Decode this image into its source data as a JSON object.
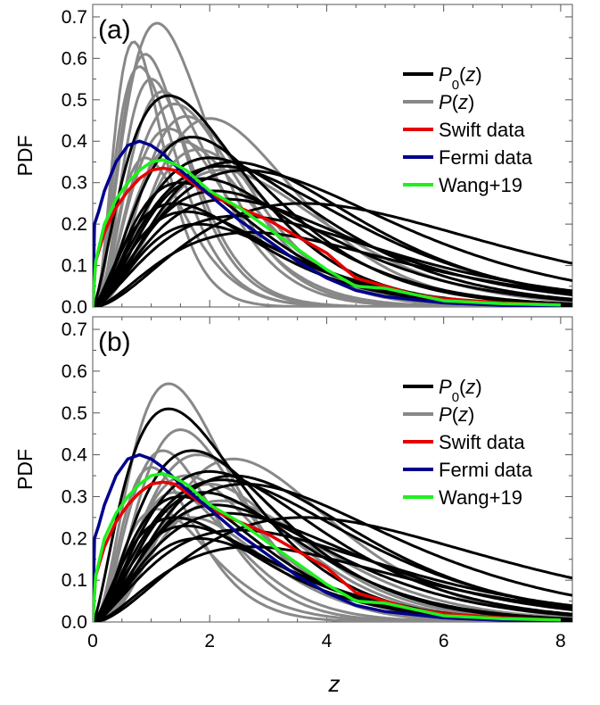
{
  "figure": {
    "xlabel": "z",
    "ylabel": "PDF"
  },
  "colors": {
    "P0": "#000000",
    "P": "#888888",
    "swift": "#e60000",
    "fermi": "#00008c",
    "wang": "#1ef01e"
  },
  "chart_data": [
    {
      "type": "line",
      "panel_label": "(a)",
      "xlabel": "",
      "ylabel": "PDF",
      "xlim": [
        0,
        8.2
      ],
      "ylim": [
        0,
        0.73
      ],
      "x_ticks": [
        "0",
        "2",
        "4",
        "6",
        "8"
      ],
      "y_ticks": [
        "0.0",
        "0.1",
        "0.2",
        "0.3",
        "0.4",
        "0.5",
        "0.6",
        "0.7"
      ],
      "legend": [
        "P0(z)",
        "P(z)",
        "Swift  data",
        "Fermi data",
        "Wang+19"
      ],
      "legend_position": "top-right",
      "families": [
        {
          "name": "P0(z)",
          "peaks": [
            [
              1.3,
              0.51
            ],
            [
              1.7,
              0.41
            ],
            [
              2.0,
              0.36
            ],
            [
              2.2,
              0.34
            ],
            [
              2.4,
              0.35
            ],
            [
              1.5,
              0.3
            ],
            [
              2.6,
              0.33
            ],
            [
              1.9,
              0.31
            ],
            [
              2.1,
              0.28
            ],
            [
              2.3,
              0.26
            ],
            [
              1.4,
              0.25
            ],
            [
              3.6,
              0.25
            ],
            [
              1.6,
              0.23
            ],
            [
              2.5,
              0.22
            ],
            [
              1.8,
              0.2
            ],
            [
              2.7,
              0.18
            ]
          ]
        },
        {
          "name": "P(z)",
          "peaks": [
            [
              1.1,
              0.685
            ],
            [
              0.7,
              0.64
            ],
            [
              0.9,
              0.61
            ],
            [
              0.8,
              0.58
            ],
            [
              1.0,
              0.55
            ],
            [
              1.2,
              0.52
            ],
            [
              1.4,
              0.49
            ],
            [
              1.6,
              0.46
            ],
            [
              2.0,
              0.455
            ],
            [
              1.3,
              0.43
            ],
            [
              1.5,
              0.4
            ],
            [
              1.8,
              0.38
            ],
            [
              0.9,
              0.36
            ],
            [
              2.2,
              0.33
            ]
          ]
        }
      ],
      "series": [
        {
          "name": "Swift  data",
          "x": [
            0,
            0.05,
            0.2,
            0.4,
            0.6,
            0.8,
            1.0,
            1.2,
            1.4,
            1.6,
            1.8,
            2.0,
            2.5,
            3.0,
            3.5,
            4.0,
            4.5,
            5.0,
            5.5,
            6.0,
            7.0,
            8.0
          ],
          "y": [
            0.0,
            0.11,
            0.18,
            0.24,
            0.28,
            0.31,
            0.33,
            0.335,
            0.33,
            0.31,
            0.29,
            0.27,
            0.24,
            0.21,
            0.17,
            0.13,
            0.07,
            0.05,
            0.03,
            0.02,
            0.01,
            0.005
          ]
        },
        {
          "name": "Fermi data",
          "x": [
            0,
            0.03,
            0.1,
            0.2,
            0.4,
            0.6,
            0.8,
            1.0,
            1.2,
            1.5,
            2.0,
            2.5,
            3.0,
            3.5,
            4.0,
            4.5,
            5.0,
            6.0,
            7.0,
            8.0
          ],
          "y": [
            0.0,
            0.2,
            0.23,
            0.28,
            0.35,
            0.39,
            0.4,
            0.39,
            0.37,
            0.33,
            0.27,
            0.21,
            0.16,
            0.11,
            0.07,
            0.04,
            0.025,
            0.01,
            0.004,
            0.002
          ]
        },
        {
          "name": "Wang+19",
          "x": [
            0,
            0.05,
            0.2,
            0.4,
            0.6,
            0.8,
            1.0,
            1.2,
            1.4,
            1.6,
            2.0,
            2.5,
            3.0,
            3.5,
            4.0,
            4.5,
            5.0,
            5.5,
            6.0,
            7.0,
            8.0
          ],
          "y": [
            0.0,
            0.11,
            0.2,
            0.26,
            0.3,
            0.33,
            0.35,
            0.355,
            0.345,
            0.33,
            0.28,
            0.24,
            0.19,
            0.14,
            0.09,
            0.05,
            0.045,
            0.03,
            0.015,
            0.008,
            0.005
          ]
        }
      ]
    },
    {
      "type": "line",
      "panel_label": "(b)",
      "xlabel": "z",
      "ylabel": "PDF",
      "xlim": [
        0,
        8.2
      ],
      "ylim": [
        0,
        0.73
      ],
      "x_ticks": [
        "0",
        "2",
        "4",
        "6",
        "8"
      ],
      "y_ticks": [
        "0.0",
        "0.1",
        "0.2",
        "0.3",
        "0.4",
        "0.5",
        "0.6",
        "0.7"
      ],
      "legend": [
        "P0(z)",
        "P(z)",
        "Swift  data",
        "Fermi data",
        "Wang+19"
      ],
      "legend_position": "top-right",
      "families": [
        {
          "name": "P0(z)",
          "peaks": [
            [
              1.3,
              0.51
            ],
            [
              1.7,
              0.41
            ],
            [
              2.0,
              0.36
            ],
            [
              2.2,
              0.34
            ],
            [
              2.4,
              0.35
            ],
            [
              1.5,
              0.3
            ],
            [
              2.6,
              0.33
            ],
            [
              1.9,
              0.31
            ],
            [
              2.1,
              0.28
            ],
            [
              2.3,
              0.26
            ],
            [
              1.4,
              0.25
            ],
            [
              3.6,
              0.25
            ],
            [
              1.6,
              0.23
            ],
            [
              2.5,
              0.22
            ],
            [
              1.8,
              0.2
            ],
            [
              2.7,
              0.18
            ]
          ]
        },
        {
          "name": "P(z)",
          "peaks": [
            [
              1.3,
              0.57
            ],
            [
              1.5,
              0.46
            ],
            [
              1.2,
              0.41
            ],
            [
              1.8,
              0.4
            ],
            [
              2.4,
              0.39
            ],
            [
              1.0,
              0.37
            ],
            [
              1.6,
              0.35
            ],
            [
              2.0,
              0.33
            ],
            [
              1.4,
              0.31
            ],
            [
              2.2,
              0.29
            ],
            [
              1.1,
              0.27
            ],
            [
              1.7,
              0.25
            ]
          ]
        }
      ],
      "series": [
        {
          "name": "Swift  data",
          "x": [
            0,
            0.05,
            0.2,
            0.4,
            0.6,
            0.8,
            1.0,
            1.2,
            1.4,
            1.6,
            1.8,
            2.0,
            2.5,
            3.0,
            3.5,
            4.0,
            4.5,
            5.0,
            5.5,
            6.0,
            7.0,
            8.0
          ],
          "y": [
            0.0,
            0.11,
            0.18,
            0.24,
            0.28,
            0.31,
            0.33,
            0.335,
            0.33,
            0.31,
            0.29,
            0.27,
            0.24,
            0.21,
            0.17,
            0.13,
            0.07,
            0.05,
            0.03,
            0.02,
            0.01,
            0.005
          ]
        },
        {
          "name": "Fermi data",
          "x": [
            0,
            0.03,
            0.1,
            0.2,
            0.4,
            0.6,
            0.8,
            1.0,
            1.2,
            1.5,
            2.0,
            2.5,
            3.0,
            3.5,
            4.0,
            4.5,
            5.0,
            6.0,
            7.0,
            8.0
          ],
          "y": [
            0.0,
            0.2,
            0.23,
            0.28,
            0.35,
            0.39,
            0.4,
            0.39,
            0.37,
            0.33,
            0.27,
            0.21,
            0.16,
            0.11,
            0.07,
            0.04,
            0.025,
            0.01,
            0.004,
            0.002
          ]
        },
        {
          "name": "Wang+19",
          "x": [
            0,
            0.05,
            0.2,
            0.4,
            0.6,
            0.8,
            1.0,
            1.2,
            1.4,
            1.6,
            2.0,
            2.5,
            3.0,
            3.5,
            4.0,
            4.5,
            5.0,
            5.5,
            6.0,
            7.0,
            8.0
          ],
          "y": [
            0.0,
            0.11,
            0.2,
            0.26,
            0.3,
            0.33,
            0.35,
            0.355,
            0.345,
            0.33,
            0.28,
            0.24,
            0.19,
            0.14,
            0.09,
            0.05,
            0.045,
            0.03,
            0.015,
            0.008,
            0.005
          ]
        }
      ]
    }
  ]
}
